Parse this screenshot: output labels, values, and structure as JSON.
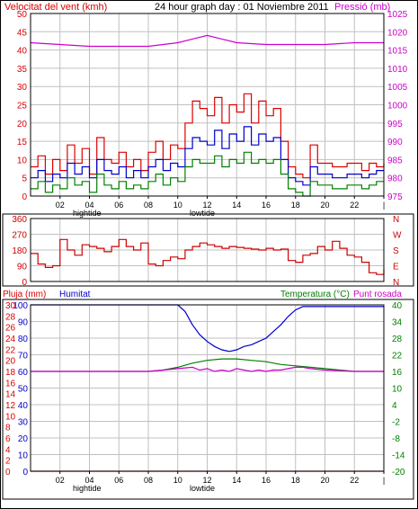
{
  "header": {
    "wind_label": "Velocitat del vent (kmh)",
    "title": "24 hour graph day : 01 Noviembre 2011",
    "pressure_label": "Pressió (mb)"
  },
  "x_ticks": [
    "02",
    "04",
    "06",
    "08",
    "10",
    "12",
    "14",
    "16",
    "18",
    "20",
    "22",
    "|"
  ],
  "tide_labels": {
    "high": "hightide",
    "low": "lowtide"
  },
  "colors": {
    "wind_gust": "#dd0000",
    "wind_avg": "#0000cc",
    "wind_min": "#008000",
    "pressure": "#cc00cc",
    "direction": "#cc0000",
    "humidity": "#0000cc",
    "temperature": "#008000",
    "dewpoint": "#cc00cc",
    "rain": "#dd0000",
    "grid": "#c0c0c0"
  },
  "chart_data": [
    {
      "type": "line",
      "name": "wind-pressure",
      "ylabel": "Velocitat del vent (kmh)",
      "ylim": [
        0,
        50
      ],
      "y_ticks": [
        "0",
        "5",
        "10",
        "15",
        "20",
        "25",
        "30",
        "35",
        "40",
        "45",
        "50"
      ],
      "y2label": "Pressió (mb)",
      "y2lim": [
        975,
        1025
      ],
      "y2_ticks": [
        "975",
        "980",
        "985",
        "990",
        "995",
        "1000",
        "1005",
        "1010",
        "1015",
        "1020",
        "1025"
      ],
      "x_range_hours": [
        0,
        24
      ],
      "grid": true,
      "series": [
        {
          "role": "gust",
          "x": [
            0,
            0.5,
            1,
            1.5,
            2,
            2.5,
            3,
            3.5,
            4,
            4.5,
            5,
            5.5,
            6,
            6.5,
            7,
            7.5,
            8,
            8.5,
            9,
            9.5,
            10,
            10.5,
            11,
            11.5,
            12,
            12.5,
            13,
            13.5,
            14,
            14.5,
            15,
            15.5,
            16,
            16.5,
            17,
            17.5,
            18,
            18.5,
            19,
            19.5,
            20,
            20.5,
            21,
            21.5,
            22,
            22.5,
            23,
            23.5,
            24
          ],
          "values": [
            8,
            11,
            6,
            10,
            7,
            14,
            9,
            13,
            6,
            16,
            10,
            9,
            12,
            8,
            10,
            7,
            12,
            15,
            10,
            14,
            13,
            20,
            26,
            24,
            22,
            27,
            20,
            25,
            23,
            28,
            20,
            26,
            22,
            24,
            15,
            8,
            6,
            5,
            14,
            9,
            9,
            8,
            8,
            9,
            9,
            7,
            9,
            8,
            9
          ]
        },
        {
          "role": "average",
          "x": [
            0,
            0.5,
            1,
            1.5,
            2,
            2.5,
            3,
            3.5,
            4,
            4.5,
            5,
            5.5,
            6,
            6.5,
            7,
            7.5,
            8,
            8.5,
            9,
            9.5,
            10,
            10.5,
            11,
            11.5,
            12,
            12.5,
            13,
            13.5,
            14,
            14.5,
            15,
            15.5,
            16,
            16.5,
            17,
            17.5,
            18,
            18.5,
            19,
            19.5,
            20,
            20.5,
            21,
            21.5,
            22,
            22.5,
            23,
            23.5,
            24
          ],
          "values": [
            5,
            7,
            4,
            6,
            5,
            9,
            6,
            8,
            5,
            10,
            7,
            6,
            8,
            5,
            7,
            5,
            8,
            10,
            7,
            9,
            8,
            13,
            16,
            15,
            14,
            18,
            13,
            17,
            15,
            19,
            14,
            17,
            15,
            16,
            10,
            5,
            4,
            3,
            8,
            6,
            6,
            5,
            5,
            6,
            6,
            5,
            6,
            7,
            7
          ]
        },
        {
          "role": "minimum",
          "x": [
            0,
            0.5,
            1,
            1.5,
            2,
            2.5,
            3,
            3.5,
            4,
            4.5,
            5,
            5.5,
            6,
            6.5,
            7,
            7.5,
            8,
            8.5,
            9,
            9.5,
            10,
            10.5,
            11,
            11.5,
            12,
            12.5,
            13,
            13.5,
            14,
            14.5,
            15,
            15.5,
            16,
            16.5,
            17,
            17.5,
            18,
            18.5,
            19,
            19.5,
            20,
            20.5,
            21,
            21.5,
            22,
            22.5,
            23,
            23.5,
            24
          ],
          "values": [
            2,
            4,
            1,
            3,
            2,
            5,
            3,
            4,
            1,
            6,
            3,
            2,
            4,
            2,
            3,
            2,
            4,
            6,
            3,
            5,
            4,
            8,
            10,
            9,
            9,
            11,
            8,
            10,
            9,
            12,
            9,
            10,
            9,
            10,
            6,
            2,
            1,
            0,
            4,
            3,
            3,
            2,
            2,
            3,
            3,
            2,
            3,
            4,
            4
          ]
        },
        {
          "role": "pressure",
          "x": [
            0,
            2,
            4,
            6,
            8,
            10,
            11,
            12,
            13,
            14,
            16,
            18,
            20,
            22,
            24
          ],
          "values": [
            1017,
            1016.5,
            1016,
            1016,
            1016,
            1017,
            1018,
            1019,
            1018,
            1017,
            1016.5,
            1016.5,
            1016.5,
            1017,
            1017
          ]
        }
      ]
    },
    {
      "type": "line",
      "name": "wind-direction",
      "y_ticks": [
        "0",
        "90",
        "180",
        "270",
        "360"
      ],
      "ylim": [
        0,
        360
      ],
      "compass": [
        "N",
        "W",
        "S",
        "E",
        "N"
      ],
      "x_range_hours": [
        0,
        24
      ],
      "grid": true,
      "series": [
        {
          "role": "direction",
          "x": [
            0,
            0.5,
            1,
            1.5,
            2,
            2.5,
            3,
            3.5,
            4,
            4.5,
            5,
            5.5,
            6,
            6.5,
            7,
            7.5,
            8,
            8.5,
            9,
            9.5,
            10,
            10.5,
            11,
            11.5,
            12,
            12.5,
            13,
            13.5,
            14,
            14.5,
            15,
            15.5,
            16,
            16.5,
            17,
            17.5,
            18,
            18.5,
            19,
            19.5,
            20,
            20.5,
            21,
            21.5,
            22,
            22.5,
            23,
            23.5,
            24
          ],
          "values": [
            160,
            100,
            80,
            90,
            240,
            180,
            150,
            210,
            200,
            190,
            170,
            200,
            240,
            200,
            180,
            220,
            100,
            90,
            120,
            140,
            130,
            180,
            200,
            220,
            210,
            200,
            190,
            200,
            195,
            190,
            185,
            180,
            190,
            180,
            185,
            120,
            110,
            150,
            160,
            200,
            180,
            230,
            190,
            150,
            140,
            110,
            50,
            40,
            70
          ]
        }
      ]
    },
    {
      "type": "line",
      "name": "rain-humidity-temperature",
      "ylabel": "Pluja (mm)",
      "ylim": [
        0,
        30
      ],
      "y_ticks": [
        "0",
        "2",
        "4",
        "6",
        "8",
        "10",
        "12",
        "14",
        "16",
        "18",
        "20",
        "22",
        "24",
        "26",
        "28",
        "30"
      ],
      "humidity_label": "Humitat",
      "humidity_lim": [
        0,
        100
      ],
      "humidity_ticks": [
        "0",
        "10",
        "20",
        "30",
        "40",
        "50",
        "60",
        "70",
        "80",
        "90",
        "100"
      ],
      "temperature_label": "Temperatura (°C)",
      "dewpoint_label": "Punt rosada",
      "temperature_lim": [
        -20,
        40
      ],
      "temperature_ticks": [
        "-20",
        "-14",
        "-8",
        "-2",
        "4",
        "10",
        "16",
        "22",
        "28",
        "34",
        "40"
      ],
      "x_range_hours": [
        0,
        24
      ],
      "grid": true,
      "series": [
        {
          "role": "humidity",
          "x": [
            0,
            2,
            4,
            6,
            8,
            9,
            10,
            10.5,
            11,
            11.5,
            12,
            12.5,
            13,
            13.5,
            14,
            14.5,
            15,
            15.5,
            16,
            16.5,
            17,
            17.5,
            18,
            18.5,
            19,
            20,
            22,
            24
          ],
          "values": [
            100,
            100,
            100,
            100,
            100,
            100,
            100,
            96,
            88,
            82,
            78,
            75,
            73,
            72,
            73,
            75,
            76,
            78,
            80,
            84,
            88,
            93,
            97,
            99,
            99,
            99,
            99,
            99
          ]
        },
        {
          "role": "temperature",
          "x": [
            0,
            2,
            4,
            6,
            8,
            9,
            10,
            11,
            12,
            13,
            14,
            15,
            16,
            17,
            18,
            19,
            20,
            21,
            22,
            24
          ],
          "values": [
            16,
            16,
            16,
            16,
            16,
            16.5,
            17.5,
            19,
            20,
            20.5,
            20.5,
            20,
            19.5,
            18.5,
            18,
            17.5,
            17,
            16.5,
            16,
            16
          ]
        },
        {
          "role": "dewpoint",
          "x": [
            0,
            2,
            4,
            6,
            8,
            9,
            10,
            11,
            11.5,
            12,
            12.5,
            13,
            13.5,
            14,
            14.5,
            15,
            15.5,
            16,
            16.5,
            17,
            17.5,
            18,
            18.5,
            19,
            20,
            22,
            24
          ],
          "values": [
            16,
            16,
            16,
            16,
            16,
            16.5,
            17,
            17.5,
            16.5,
            17,
            16,
            16.5,
            16,
            17,
            16.5,
            16,
            16.5,
            16,
            16.5,
            16.5,
            17,
            17.5,
            17.5,
            17,
            16.5,
            16,
            16
          ]
        },
        {
          "role": "rain",
          "x": [
            0,
            24
          ],
          "values": [
            0,
            0
          ]
        }
      ]
    }
  ]
}
